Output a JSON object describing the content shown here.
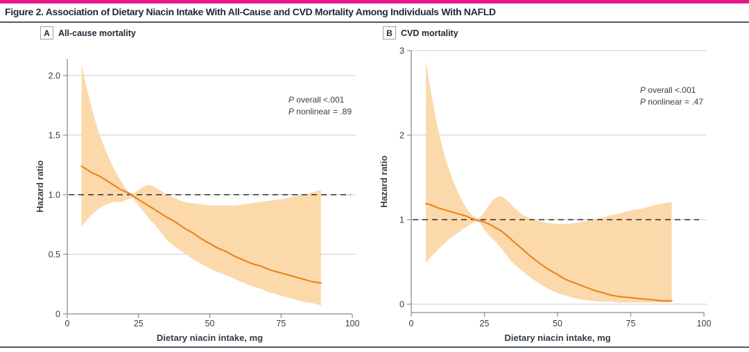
{
  "figure": {
    "title": "Figure 2. Association of Dietary Niacin Intake With All-Cause and CVD Mortality Among Individuals With NAFLD",
    "accent_bar_color": "#e6168c"
  },
  "chart_data": [
    {
      "type": "area",
      "panel_label": "A",
      "title": "All-cause mortality",
      "xlabel": "Dietary niacin intake, mg",
      "ylabel": "Hazard ratio",
      "xlim": [
        0,
        100
      ],
      "xticks": [
        0,
        25,
        50,
        75,
        100
      ],
      "xtick_labels": [
        "0",
        "25",
        "50",
        "75",
        "100"
      ],
      "yticks": [
        0,
        0.5,
        1.0,
        1.5,
        2.0
      ],
      "ytick_labels": [
        "0",
        "0.5",
        "1.0",
        "1.5",
        "2.0"
      ],
      "grid": true,
      "legend": "none",
      "reference_line_y": 1.0,
      "annotation": {
        "p_symbol": "P",
        "overall": " overall <.001",
        "nonlinear": " nonlinear = .89"
      },
      "series": [
        {
          "name": "hazard-ratio",
          "x": [
            5,
            7,
            9,
            11,
            13,
            15,
            17,
            19,
            21,
            23,
            25,
            27,
            29,
            31,
            33,
            35,
            38,
            41,
            44,
            47,
            50,
            53,
            56,
            59,
            62,
            65,
            68,
            71,
            74,
            77,
            80,
            83,
            86,
            89
          ],
          "y": [
            1.24,
            1.21,
            1.18,
            1.16,
            1.13,
            1.1,
            1.07,
            1.04,
            1.02,
            0.99,
            0.96,
            0.93,
            0.9,
            0.87,
            0.84,
            0.81,
            0.77,
            0.72,
            0.68,
            0.63,
            0.59,
            0.55,
            0.52,
            0.48,
            0.45,
            0.42,
            0.4,
            0.37,
            0.35,
            0.33,
            0.31,
            0.29,
            0.27,
            0.26
          ]
        },
        {
          "name": "ci-upper",
          "x": [
            5,
            7,
            9,
            11,
            13,
            15,
            17,
            19,
            21,
            23,
            25,
            27,
            29,
            31,
            33,
            35,
            38,
            41,
            44,
            47,
            50,
            53,
            56,
            59,
            62,
            65,
            68,
            71,
            74,
            77,
            80,
            83,
            86,
            89
          ],
          "y": [
            2.1,
            1.88,
            1.69,
            1.53,
            1.4,
            1.29,
            1.19,
            1.11,
            1.04,
            1.01,
            1.04,
            1.07,
            1.08,
            1.06,
            1.03,
            1.0,
            0.97,
            0.94,
            0.93,
            0.92,
            0.91,
            0.91,
            0.91,
            0.91,
            0.92,
            0.93,
            0.94,
            0.95,
            0.96,
            0.97,
            0.99,
            1.0,
            1.02,
            1.04
          ]
        },
        {
          "name": "ci-lower",
          "x": [
            5,
            7,
            9,
            11,
            13,
            15,
            17,
            19,
            21,
            23,
            25,
            27,
            29,
            31,
            33,
            35,
            38,
            41,
            44,
            47,
            50,
            53,
            56,
            59,
            62,
            65,
            68,
            71,
            74,
            77,
            80,
            83,
            86,
            89
          ],
          "y": [
            0.73,
            0.79,
            0.84,
            0.88,
            0.91,
            0.93,
            0.94,
            0.94,
            0.96,
            0.97,
            0.91,
            0.85,
            0.79,
            0.74,
            0.68,
            0.62,
            0.56,
            0.51,
            0.46,
            0.42,
            0.38,
            0.35,
            0.32,
            0.29,
            0.26,
            0.23,
            0.21,
            0.18,
            0.16,
            0.14,
            0.12,
            0.1,
            0.09,
            0.07
          ]
        }
      ],
      "colors": {
        "band": "#fbd9ab",
        "line": "#e8861f",
        "reference": "#2e2e2e",
        "grid": "#d4d4d4",
        "axis": "#8a8a8a",
        "text": "#333d47"
      }
    },
    {
      "type": "area",
      "panel_label": "B",
      "title": "CVD mortality",
      "xlabel": "Dietary niacin intake, mg",
      "ylabel": "Hazard ratio",
      "xlim": [
        0,
        100
      ],
      "xticks": [
        0,
        25,
        50,
        75,
        100
      ],
      "xtick_labels": [
        "0",
        "25",
        "50",
        "75",
        "100"
      ],
      "yticks": [
        0,
        1,
        2,
        3
      ],
      "ytick_labels": [
        "0",
        "1",
        "2",
        "3"
      ],
      "grid": true,
      "legend": "none",
      "reference_line_y": 1.0,
      "annotation": {
        "p_symbol": "P",
        "overall": " overall <.001",
        "nonlinear": " nonlinear = .47"
      },
      "series": [
        {
          "name": "hazard-ratio",
          "x": [
            5,
            7,
            9,
            11,
            13,
            15,
            17,
            19,
            21,
            23,
            25,
            27,
            29,
            31,
            33,
            35,
            38,
            41,
            44,
            47,
            50,
            53,
            56,
            59,
            62,
            65,
            68,
            71,
            74,
            77,
            80,
            83,
            86,
            89
          ],
          "y": [
            1.19,
            1.17,
            1.14,
            1.12,
            1.1,
            1.08,
            1.06,
            1.04,
            1.01,
            0.99,
            0.97,
            0.94,
            0.9,
            0.86,
            0.8,
            0.74,
            0.65,
            0.56,
            0.48,
            0.41,
            0.35,
            0.29,
            0.25,
            0.21,
            0.17,
            0.14,
            0.11,
            0.09,
            0.08,
            0.07,
            0.06,
            0.05,
            0.04,
            0.04
          ]
        },
        {
          "name": "ci-upper",
          "x": [
            5,
            7,
            9,
            11,
            13,
            15,
            17,
            19,
            21,
            23,
            25,
            27,
            29,
            31,
            33,
            35,
            38,
            41,
            44,
            47,
            50,
            53,
            56,
            59,
            62,
            65,
            68,
            71,
            74,
            77,
            80,
            83,
            86,
            89
          ],
          "y": [
            2.88,
            2.46,
            2.1,
            1.81,
            1.58,
            1.4,
            1.25,
            1.13,
            1.05,
            1.02,
            1.09,
            1.19,
            1.26,
            1.27,
            1.22,
            1.15,
            1.06,
            1.01,
            0.98,
            0.96,
            0.95,
            0.95,
            0.96,
            0.98,
            1.0,
            1.02,
            1.05,
            1.07,
            1.1,
            1.12,
            1.14,
            1.17,
            1.19,
            1.21
          ]
        },
        {
          "name": "ci-lower",
          "x": [
            5,
            7,
            9,
            11,
            13,
            15,
            17,
            19,
            21,
            23,
            25,
            27,
            29,
            31,
            33,
            35,
            38,
            41,
            44,
            47,
            50,
            53,
            56,
            59,
            62,
            65,
            68,
            71,
            74,
            77,
            80,
            83,
            86,
            89
          ],
          "y": [
            0.49,
            0.57,
            0.64,
            0.71,
            0.77,
            0.82,
            0.87,
            0.92,
            0.96,
            0.97,
            0.88,
            0.8,
            0.73,
            0.65,
            0.56,
            0.48,
            0.39,
            0.31,
            0.24,
            0.18,
            0.13,
            0.1,
            0.07,
            0.05,
            0.04,
            0.03,
            0.03,
            0.02,
            0.02,
            0.02,
            0.02,
            0.02,
            0.02,
            0.02
          ]
        }
      ],
      "colors": {
        "band": "#fbd9ab",
        "line": "#e8861f",
        "reference": "#2e2e2e",
        "grid": "#d4d4d4",
        "axis": "#8a8a8a",
        "text": "#333d47"
      }
    }
  ]
}
